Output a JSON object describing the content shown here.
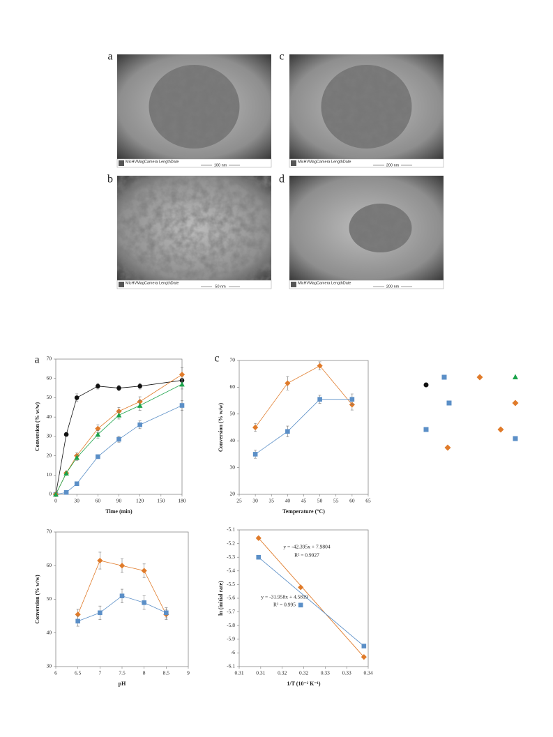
{
  "micrographs": [
    {
      "label": "a",
      "info": "MicHVMagCamera LengthDate",
      "scale": "100 nm"
    },
    {
      "label": "c",
      "info": "MicHVMagCamera LengthDate",
      "scale": "200 nm"
    },
    {
      "label": "b",
      "info": "MicHVMagCamera LengthDate",
      "scale": "50 nm"
    },
    {
      "label": "d",
      "info": "MicHVMagCamera LengthDate",
      "scale": "200 nm"
    }
  ],
  "chart_data": [
    {
      "type": "line",
      "panel": "a",
      "xlabel": "Time (min)",
      "ylabel": "Conversion (% w/w)",
      "x": [
        0,
        15,
        30,
        60,
        90,
        120,
        180
      ],
      "xlim": [
        0,
        180
      ],
      "xticks": [
        0,
        30,
        60,
        90,
        120,
        150,
        180
      ],
      "ylim": [
        0,
        70
      ],
      "yticks": [
        0,
        10,
        20,
        30,
        40,
        50,
        60,
        70
      ],
      "series": [
        {
          "color": "#111111",
          "marker": "circle",
          "values": [
            0,
            31,
            50,
            56,
            55,
            56,
            59
          ],
          "errors": [
            0,
            1,
            2,
            1.5,
            1.5,
            1.5,
            2
          ]
        },
        {
          "color": "#5b8fc7",
          "marker": "square",
          "values": [
            0,
            1,
            5.5,
            19.5,
            28.5,
            36,
            46
          ],
          "errors": [
            0,
            0.5,
            0.8,
            1,
            1.5,
            2,
            2.5
          ]
        },
        {
          "color": "#e07b2a",
          "marker": "diamond",
          "values": [
            0,
            11,
            20,
            34,
            43,
            48,
            62
          ],
          "errors": [
            0,
            1,
            1.5,
            2,
            2,
            2.5,
            3.5
          ]
        },
        {
          "color": "#1aa34a",
          "marker": "triangle",
          "values": [
            0,
            11,
            19,
            31,
            41,
            46,
            57
          ],
          "errors": [
            0,
            1,
            1.5,
            2,
            2,
            2.5,
            2.5
          ]
        }
      ]
    },
    {
      "type": "line",
      "panel": "c",
      "xlabel": "Temperature (°C)",
      "ylabel": "Conversion (% w/w)",
      "x": [
        30,
        40,
        50,
        60
      ],
      "xlim": [
        25,
        65
      ],
      "xticks": [
        25,
        30,
        35,
        40,
        45,
        50,
        55,
        60,
        65
      ],
      "ylim": [
        20,
        70
      ],
      "yticks": [
        20,
        30,
        40,
        50,
        60,
        70
      ],
      "series": [
        {
          "color": "#e07b2a",
          "marker": "diamond",
          "values": [
            45,
            61.5,
            68,
            53.5
          ],
          "errors": [
            1.5,
            2.5,
            1.5,
            2
          ]
        },
        {
          "color": "#5b8fc7",
          "marker": "square",
          "values": [
            35,
            43.5,
            55.5,
            55.5
          ],
          "errors": [
            1.5,
            2,
            1.5,
            2
          ]
        }
      ]
    },
    {
      "type": "line",
      "xlabel": "pH",
      "ylabel": "Conversion (% w/w)",
      "x": [
        6.5,
        7,
        7.5,
        8,
        8.5
      ],
      "xlim": [
        6,
        9
      ],
      "xticks": [
        6,
        6.5,
        7,
        7.5,
        8,
        8.5,
        9
      ],
      "ylim": [
        30,
        70
      ],
      "yticks": [
        30,
        40,
        50,
        60,
        70
      ],
      "series": [
        {
          "color": "#e07b2a",
          "marker": "diamond",
          "values": [
            45.5,
            61.5,
            60,
            58.5,
            45.5
          ],
          "errors": [
            1.5,
            2.5,
            2,
            2,
            1.5
          ]
        },
        {
          "color": "#5b8fc7",
          "marker": "square",
          "values": [
            43.5,
            46,
            51,
            49,
            46
          ],
          "errors": [
            1.5,
            2,
            2,
            2,
            1.5
          ]
        }
      ]
    },
    {
      "type": "scatter",
      "trendline": true,
      "xlabel": "1/T (10⁻² K⁻¹)",
      "ylabel": "ln (initial rate)",
      "x": [
        0.3095,
        0.3193,
        0.334
      ],
      "xlim": [
        0.305,
        0.335
      ],
      "xticks": [
        {
          "value": 0.305,
          "label": "0.31"
        },
        {
          "value": 0.31,
          "label": "0.31"
        },
        {
          "value": 0.315,
          "label": "0.32"
        },
        {
          "value": 0.32,
          "label": "0.32"
        },
        {
          "value": 0.325,
          "label": "0.33"
        },
        {
          "value": 0.33,
          "label": "0.33"
        },
        {
          "value": 0.335,
          "label": "0.34"
        }
      ],
      "ylim": [
        -6.1,
        -5.1
      ],
      "yticks": [
        -5.1,
        -5.2,
        -5.3,
        -5.4,
        -5.5,
        -5.6,
        -5.7,
        -5.8,
        -5.9,
        -6,
        -6.1
      ],
      "annotations": [
        "y = -42.395x + 7.9804",
        "R² = 0.9927",
        "y = -31.958x + 4.5819",
        "R² = 0.995"
      ],
      "series": [
        {
          "color": "#e07b2a",
          "marker": "diamond",
          "values": [
            -5.16,
            -5.52,
            -6.03
          ]
        },
        {
          "color": "#5b8fc7",
          "marker": "square",
          "values": [
            -5.3,
            -5.65,
            -5.95
          ]
        }
      ]
    }
  ]
}
